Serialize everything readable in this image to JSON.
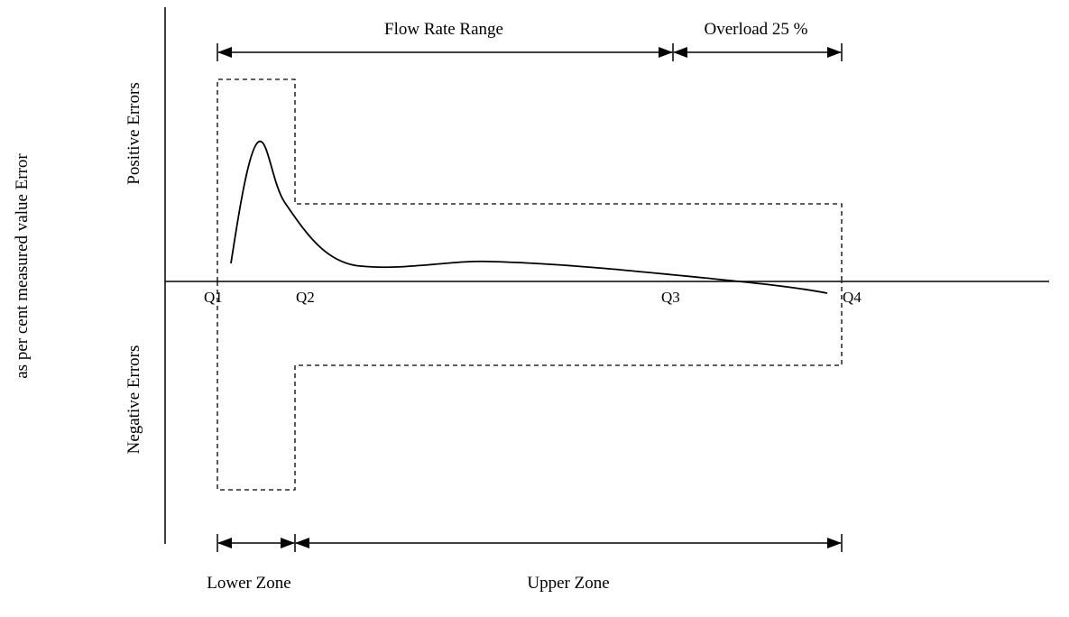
{
  "labels": {
    "y_axis_title": "as per cent measured value Error",
    "positive_errors": "Positive Errors",
    "negative_errors": "Negative Errors",
    "flow_rate_range": "Flow Rate Range",
    "overload": "Overload 25 %",
    "lower_zone": "Lower Zone",
    "upper_zone": "Upper Zone"
  },
  "flow_points": {
    "q1": "Q1",
    "q2": "Q2",
    "q3": "Q3",
    "q4": "Q4"
  },
  "colors": {
    "line": "#000000",
    "background": "#ffffff"
  }
}
